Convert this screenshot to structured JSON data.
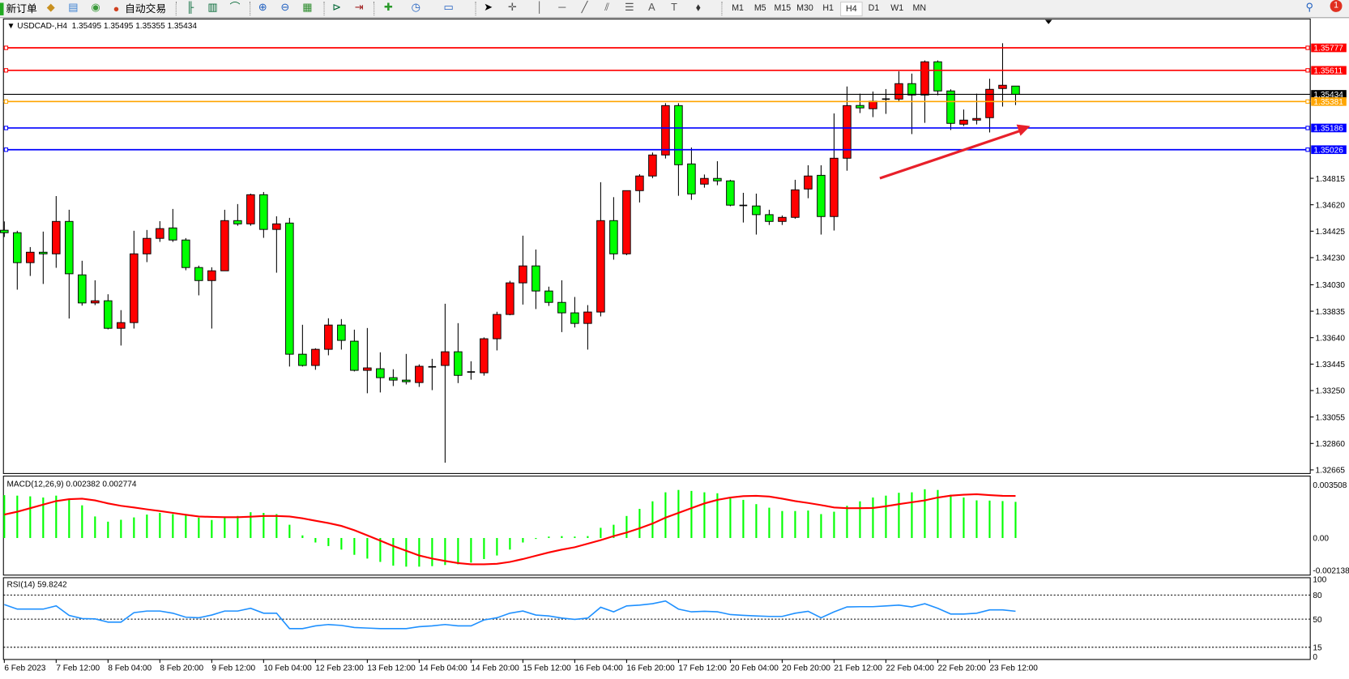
{
  "toolbar": {
    "new_order": "新订单",
    "auto_trading": "自动交易",
    "periods": [
      "M1",
      "M5",
      "M15",
      "M30",
      "H1",
      "H4",
      "D1",
      "W1",
      "MN"
    ],
    "active_period": "H4",
    "notification_count": "1"
  },
  "chart_header": {
    "symbol": "USDCAD-,H4",
    "ohlc": "1.35495 1.35495 1.35355 1.35434"
  },
  "macd_header": "MACD(12,26,9) 0.002382 0.002774",
  "rsi_header": "RSI(14) 59.8242",
  "colors": {
    "bull": "#ff0000",
    "bear": "#00ff00",
    "macd_hist": "#00ff00",
    "macd_signal": "#ff0000",
    "rsi": "#1e90ff",
    "resistance": "#ff0000",
    "support": "#0000ff",
    "mid": "#ffa500",
    "arrow": "#e8202a"
  },
  "chart_data": [
    {
      "type": "candlestick",
      "price_axis": {
        "range": [
          1.32665,
          1.35777
        ],
        "ticks": [
          "1.34815",
          "1.34620",
          "1.34425",
          "1.34230",
          "1.34030",
          "1.33835",
          "1.33640",
          "1.33445",
          "1.33250",
          "1.33055",
          "1.32860",
          "1.32665"
        ]
      },
      "levels": [
        {
          "price": 1.35777,
          "label": "1.35777",
          "color": "#ff0000"
        },
        {
          "price": 1.35611,
          "label": "1.35611",
          "color": "#ff0000"
        },
        {
          "price": 1.35434,
          "label": "1.35434",
          "color": "#000000",
          "kind": "current"
        },
        {
          "price": 1.35381,
          "label": "1.35381",
          "color": "#ffa500"
        },
        {
          "price": 1.35186,
          "label": "1.35186",
          "color": "#0000ff"
        },
        {
          "price": 1.35026,
          "label": "1.35026",
          "color": "#0000ff"
        }
      ],
      "arrow": {
        "from_candle": 68,
        "from_price": 1.34815,
        "to_candle": 79,
        "to_price": 1.352,
        "color": "#e8202a"
      },
      "time_labels": [
        "6 Feb 2023",
        "7 Feb 12:00",
        "8 Feb 04:00",
        "8 Feb 20:00",
        "9 Feb 12:00",
        "10 Feb 04:00",
        "12 Feb 23:00",
        "13 Feb 12:00",
        "14 Feb 04:00",
        "14 Feb 20:00",
        "15 Feb 12:00",
        "16 Feb 04:00",
        "16 Feb 20:00",
        "17 Feb 12:00",
        "20 Feb 04:00",
        "20 Feb 20:00",
        "21 Feb 12:00",
        "22 Feb 04:00",
        "22 Feb 20:00",
        "23 Feb 12:00"
      ],
      "ohlc": [
        [
          1.34432,
          1.34497,
          1.34382,
          1.34414
        ],
        [
          1.34414,
          1.34428,
          1.33994,
          1.34193
        ],
        [
          1.34193,
          1.34308,
          1.34095,
          1.3427
        ],
        [
          1.3427,
          1.34422,
          1.34036,
          1.34258
        ],
        [
          1.34258,
          1.34684,
          1.34155,
          1.34497
        ],
        [
          1.34497,
          1.34583,
          1.33781,
          1.34111
        ],
        [
          1.34103,
          1.34207,
          1.33876,
          1.33896
        ],
        [
          1.33896,
          1.34063,
          1.3388,
          1.33912
        ],
        [
          1.33912,
          1.3396,
          1.33701,
          1.33709
        ],
        [
          1.33709,
          1.33843,
          1.33582,
          1.33751
        ],
        [
          1.33751,
          1.34428,
          1.33707,
          1.34258
        ],
        [
          1.34258,
          1.34434,
          1.34197,
          1.34372
        ],
        [
          1.34372,
          1.34499,
          1.34346,
          1.34444
        ],
        [
          1.34449,
          1.34589,
          1.34346,
          1.3436
        ],
        [
          1.3436,
          1.34374,
          1.34137,
          1.34157
        ],
        [
          1.34157,
          1.34171,
          1.33952,
          1.34061
        ],
        [
          1.34061,
          1.34159,
          1.33707,
          1.34133
        ],
        [
          1.34133,
          1.34583,
          1.34133,
          1.34503
        ],
        [
          1.34503,
          1.34625,
          1.34465,
          1.34479
        ],
        [
          1.34479,
          1.34702,
          1.34465,
          1.34694
        ],
        [
          1.34694,
          1.34714,
          1.34376,
          1.34438
        ],
        [
          1.34438,
          1.34535,
          1.34119,
          1.34479
        ],
        [
          1.34485,
          1.34523,
          1.33427,
          1.33518
        ],
        [
          1.33518,
          1.33735,
          1.33427,
          1.33435
        ],
        [
          1.33435,
          1.33562,
          1.33403,
          1.33554
        ],
        [
          1.33554,
          1.33783,
          1.3351,
          1.33733
        ],
        [
          1.33733,
          1.33777,
          1.33552,
          1.3362
        ],
        [
          1.33614,
          1.33699,
          1.33391,
          1.33399
        ],
        [
          1.33399,
          1.33711,
          1.3323,
          1.33417
        ],
        [
          1.33411,
          1.33532,
          1.33236,
          1.33345
        ],
        [
          1.33345,
          1.33407,
          1.33283,
          1.33327
        ],
        [
          1.33327,
          1.3352,
          1.33295,
          1.33315
        ],
        [
          1.33309,
          1.33443,
          1.33277,
          1.33429
        ],
        [
          1.33425,
          1.33484,
          1.33253,
          1.33425
        ],
        [
          1.33435,
          1.3389,
          1.32718,
          1.33536
        ],
        [
          1.33536,
          1.33747,
          1.33305,
          1.33362
        ],
        [
          1.33387,
          1.33466,
          1.3333,
          1.33387
        ],
        [
          1.33381,
          1.33642,
          1.3336,
          1.33632
        ],
        [
          1.33632,
          1.33831,
          1.33546,
          1.33811
        ],
        [
          1.33811,
          1.34059,
          1.33805,
          1.34044
        ],
        [
          1.34044,
          1.34392,
          1.33884,
          1.34169
        ],
        [
          1.34169,
          1.3429,
          1.33851,
          1.33984
        ],
        [
          1.33984,
          1.34016,
          1.33874,
          1.339
        ],
        [
          1.339,
          1.34063,
          1.33681,
          1.33823
        ],
        [
          1.33823,
          1.3394,
          1.33715,
          1.33745
        ],
        [
          1.33745,
          1.3388,
          1.33552,
          1.33829
        ],
        [
          1.33829,
          1.34786,
          1.33797,
          1.34503
        ],
        [
          1.34503,
          1.34676,
          1.34215,
          1.34258
        ],
        [
          1.34258,
          1.34724,
          1.34248,
          1.34724
        ],
        [
          1.34724,
          1.34845,
          1.34637,
          1.34832
        ],
        [
          1.34832,
          1.35005,
          1.34816,
          1.34987
        ],
        [
          1.34987,
          1.35369,
          1.34961,
          1.35351
        ],
        [
          1.35351,
          1.35369,
          1.34686,
          1.34915
        ],
        [
          1.34921,
          1.35042,
          1.34656,
          1.347
        ],
        [
          1.34772,
          1.34843,
          1.34746,
          1.34814
        ],
        [
          1.34814,
          1.34941,
          1.34764,
          1.34796
        ],
        [
          1.34796,
          1.34804,
          1.34609,
          1.34617
        ],
        [
          1.34615,
          1.34708,
          1.34489,
          1.34615
        ],
        [
          1.34611,
          1.34702,
          1.344,
          1.34547
        ],
        [
          1.34547,
          1.34583,
          1.34471,
          1.34497
        ],
        [
          1.34497,
          1.34541,
          1.34471,
          1.34527
        ],
        [
          1.34527,
          1.34804,
          1.34517,
          1.3473
        ],
        [
          1.34736,
          1.34911,
          1.34668,
          1.34832
        ],
        [
          1.34837,
          1.34911,
          1.344,
          1.34533
        ],
        [
          1.34533,
          1.35293,
          1.3443,
          1.34963
        ],
        [
          1.34963,
          1.35492,
          1.34871,
          1.35351
        ],
        [
          1.35352,
          1.35439,
          1.35296,
          1.35334
        ],
        [
          1.35328,
          1.35455,
          1.35266,
          1.35384
        ],
        [
          1.35399,
          1.35473,
          1.3529,
          1.35399
        ],
        [
          1.35399,
          1.35604,
          1.3538,
          1.35513
        ],
        [
          1.35513,
          1.35587,
          1.35141,
          1.35429
        ],
        [
          1.35429,
          1.35684,
          1.35224,
          1.35674
        ],
        [
          1.35674,
          1.35684,
          1.35427,
          1.35459
        ],
        [
          1.35459,
          1.35471,
          1.35171,
          1.3522
        ],
        [
          1.35214,
          1.35322,
          1.352,
          1.35244
        ],
        [
          1.35244,
          1.35439,
          1.35212,
          1.35256
        ],
        [
          1.35262,
          1.35549,
          1.35153,
          1.35471
        ],
        [
          1.35477,
          1.35811,
          1.35344,
          1.35501
        ],
        [
          1.35495,
          1.35495,
          1.35355,
          1.35434
        ]
      ]
    },
    {
      "type": "bar+line",
      "indicator": "MACD(12,26,9)",
      "range": [
        -0.002138,
        0.003508
      ],
      "ticks": [
        "0.003508",
        "0.00",
        "-0.002138"
      ],
      "histogram": [
        0.002824,
        0.002792,
        0.002746,
        0.002668,
        0.002792,
        0.00259,
        0.002153,
        0.00142,
        0.001076,
        0.001201,
        0.001357,
        0.001544,
        0.001654,
        0.001576,
        0.001498,
        0.001342,
        0.001186,
        0.001342,
        0.001451,
        0.0017,
        0.001654,
        0.001576,
        0.000874,
        0.000172,
        -0.000296,
        -0.00053,
        -0.000764,
        -0.001108,
        -0.001357,
        -0.001576,
        -0.001825,
        -0.001888,
        -0.001888,
        -0.001856,
        -0.001778,
        -0.001732,
        -0.001622,
        -0.001388,
        -0.001154,
        -0.000764,
        -0.000296,
        -6.2e-05,
        9.4e-05,
        0.000125,
        9.4e-05,
        0.000125,
        0.000671,
        0.000874,
        0.001451,
        0.001919,
        0.002418,
        0.003011,
        0.003167,
        0.003104,
        0.003011,
        0.002948,
        0.002668,
        0.002512,
        0.002231,
        0.001997,
        0.001778,
        0.001778,
        0.00181,
        0.001576,
        0.001732,
        0.002122,
        0.002418,
        0.002668,
        0.002792,
        0.00298,
        0.003011,
        0.003214,
        0.003167,
        0.002855,
        0.002668,
        0.00248,
        0.002465,
        0.002434,
        0.002382
      ],
      "signal": [
        0.001544,
        0.001732,
        0.001966,
        0.0022,
        0.002434,
        0.002558,
        0.00259,
        0.00248,
        0.002278,
        0.002122,
        0.002012,
        0.001888,
        0.001778,
        0.001654,
        0.001529,
        0.00142,
        0.001388,
        0.001373,
        0.001373,
        0.001404,
        0.001451,
        0.001451,
        0.00142,
        0.001295,
        0.001139,
        0.000983,
        0.000796,
        0.000515,
        0.000172,
        -0.000172,
        -0.00053,
        -0.000842,
        -0.001154,
        -0.001357,
        -0.001513,
        -0.001654,
        -0.001732,
        -0.001732,
        -0.0017,
        -0.001576,
        -0.001388,
        -0.00117,
        -0.000952,
        -0.000764,
        -0.000608,
        -0.000374,
        -0.00014,
        0.000125,
        0.000359,
        0.00064,
        0.000952,
        0.001342,
        0.001654,
        0.001966,
        0.002278,
        0.002512,
        0.002668,
        0.002761,
        0.002777,
        0.00273,
        0.00259,
        0.002434,
        0.002309,
        0.002168,
        0.002012,
        0.001966,
        0.001966,
        0.001981,
        0.00209,
        0.002231,
        0.002356,
        0.00248,
        0.002668,
        0.002792,
        0.002855,
        0.002886,
        0.002824,
        0.002777,
        0.002774
      ]
    },
    {
      "type": "line",
      "indicator": "RSI(14)",
      "range": [
        0,
        100
      ],
      "ticks": [
        "100",
        "80",
        "50",
        "15",
        "0"
      ],
      "levels": [
        80,
        50,
        15
      ],
      "values": [
        68.2,
        62.5,
        62.5,
        62.5,
        66.5,
        54.7,
        50.7,
        50.3,
        46.3,
        46.3,
        58.1,
        60.1,
        60.1,
        57.4,
        52.4,
        51.7,
        55.1,
        60.1,
        60.1,
        63.5,
        57.4,
        57.4,
        38.2,
        38.2,
        41.6,
        43.3,
        42.2,
        39.6,
        38.9,
        38.2,
        38.2,
        38.2,
        40.6,
        41.6,
        43.3,
        41.6,
        41.6,
        49.0,
        51.7,
        57.4,
        60.1,
        55.1,
        54.0,
        51.3,
        49.7,
        51.3,
        64.8,
        59.1,
        66.5,
        67.5,
        69.2,
        72.6,
        62.5,
        59.1,
        59.8,
        59.1,
        55.7,
        54.7,
        54.0,
        53.4,
        53.4,
        57.4,
        59.8,
        51.7,
        59.1,
        65.2,
        65.5,
        65.5,
        66.5,
        67.5,
        65.2,
        69.2,
        63.5,
        56.4,
        56.4,
        57.4,
        61.5,
        61.5,
        59.8242
      ]
    }
  ]
}
